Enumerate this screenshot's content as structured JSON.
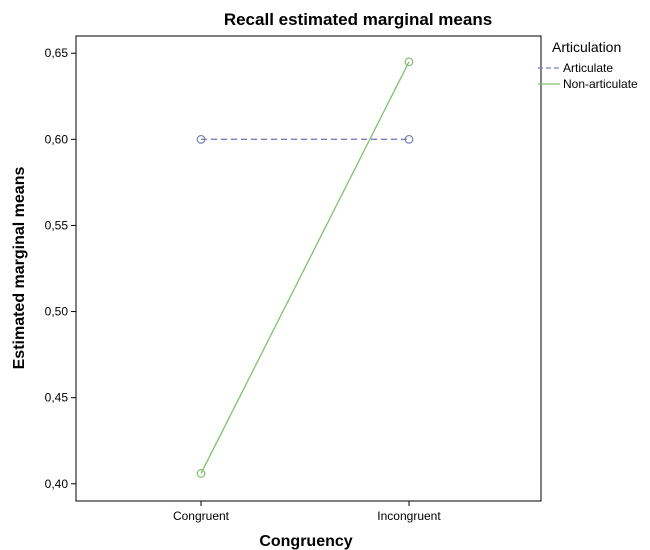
{
  "chart_data": {
    "type": "line",
    "title": "Recall estimated marginal means",
    "xlabel": "Congruency",
    "ylabel": "Estimated marginal means",
    "categories": [
      "Congruent",
      "Incongruent"
    ],
    "ylim": [
      0.39,
      0.66
    ],
    "yticks": [
      0.4,
      0.45,
      0.5,
      0.55,
      0.6,
      0.65
    ],
    "ytick_labels": [
      "0,40",
      "0,45",
      "0,50",
      "0,55",
      "0,60",
      "0,65"
    ],
    "grid": false,
    "legend": {
      "title": "Articulation",
      "position": "right-top"
    },
    "series": [
      {
        "name": "Articulate",
        "values": [
          0.6,
          0.6
        ],
        "color": "#7b7fbf",
        "dash": "dashed",
        "marker": "circle"
      },
      {
        "name": "Non-articulate",
        "values": [
          0.406,
          0.645
        ],
        "color": "#7dc26e",
        "dash": "solid",
        "marker": "circle"
      }
    ]
  }
}
